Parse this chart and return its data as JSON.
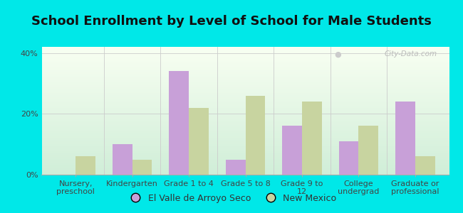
{
  "title": "School Enrollment by Level of School for Male Students",
  "categories": [
    "Nursery,\npreschool",
    "Kindergarten",
    "Grade 1 to 4",
    "Grade 5 to 8",
    "Grade 9 to\n12",
    "College\nundergrad",
    "Graduate or\nprofessional"
  ],
  "series1_name": "El Valle de Arroyo Seco",
  "series2_name": "New Mexico",
  "series1_values": [
    0,
    10,
    34,
    5,
    16,
    11,
    24
  ],
  "series2_values": [
    6,
    5,
    22,
    26,
    24,
    16,
    6
  ],
  "series1_color": "#c8a0d8",
  "series2_color": "#c8d4a0",
  "ylim": [
    0,
    42
  ],
  "yticks": [
    0,
    20,
    40
  ],
  "ytick_labels": [
    "0%",
    "20%",
    "40%"
  ],
  "background_color": "#00e8e8",
  "title_fontsize": 13,
  "tick_fontsize": 8,
  "legend_fontsize": 9,
  "bar_width": 0.35
}
